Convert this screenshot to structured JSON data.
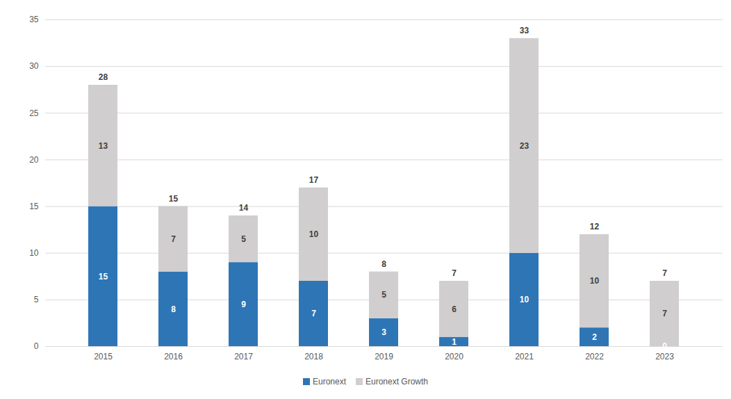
{
  "chart_data": {
    "type": "bar",
    "stacked": true,
    "data_labels": true,
    "grid": true,
    "legend": "bottom",
    "categories": [
      "2015",
      "2016",
      "2017",
      "2018",
      "2019",
      "2020",
      "2021",
      "2022",
      "2023"
    ],
    "series": [
      {
        "name": "Euronext",
        "color": "#2e75b6",
        "values": [
          15,
          8,
          9,
          7,
          3,
          1,
          10,
          2,
          0
        ]
      },
      {
        "name": "Euronext Growth",
        "color": "#d0cece",
        "values": [
          13,
          7,
          5,
          10,
          5,
          6,
          23,
          10,
          7
        ]
      }
    ],
    "totals": [
      28,
      15,
      14,
      17,
      8,
      7,
      33,
      12,
      7
    ],
    "ylim": [
      0,
      35
    ],
    "yticks": [
      0,
      5,
      10,
      15,
      20,
      25,
      30,
      35
    ]
  }
}
